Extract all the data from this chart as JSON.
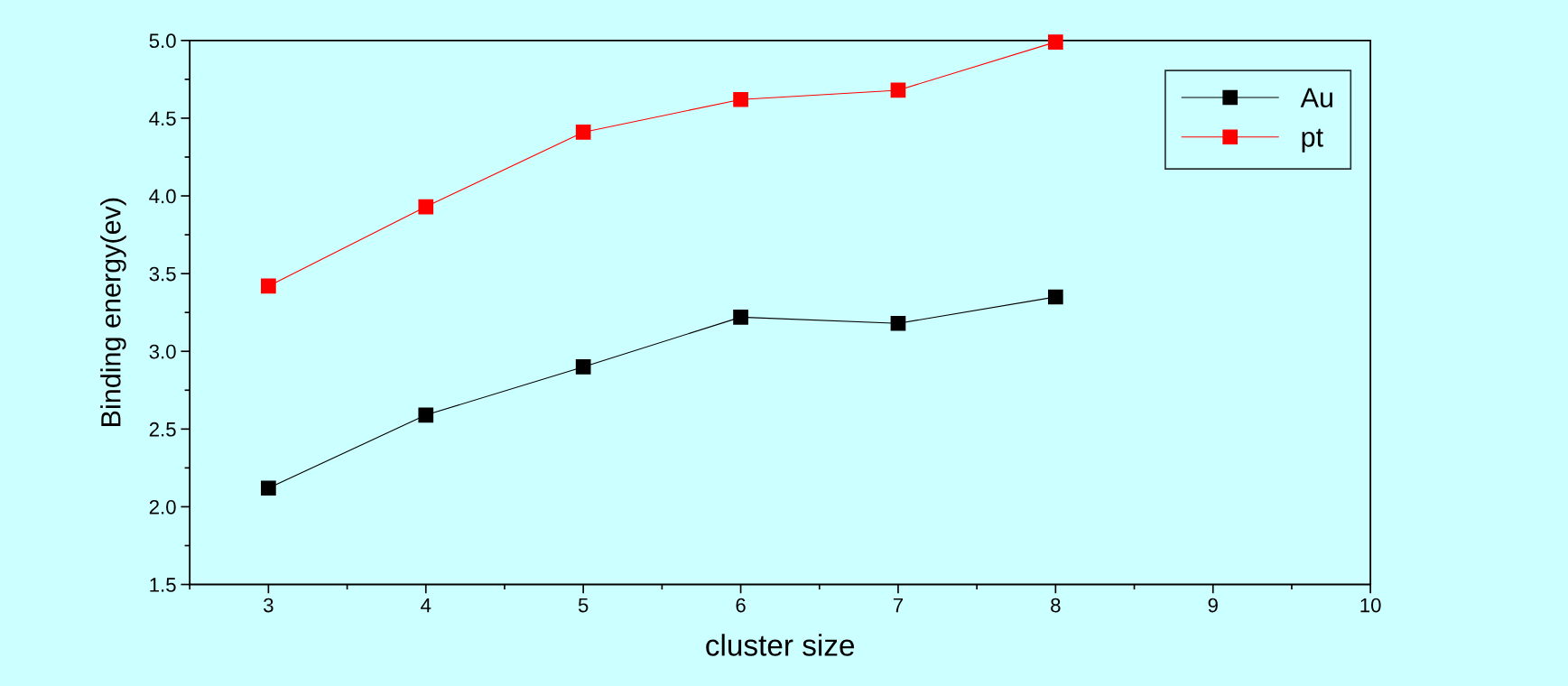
{
  "chart_data": {
    "type": "line",
    "xlabel": "cluster size",
    "ylabel": "Binding energy(ev)",
    "x": [
      3,
      4,
      5,
      6,
      7,
      8
    ],
    "series": [
      {
        "name": "Au",
        "color": "#000000",
        "values": [
          2.12,
          2.59,
          2.9,
          3.22,
          3.18,
          3.35
        ]
      },
      {
        "name": "pt",
        "color": "#ff0000",
        "values": [
          3.42,
          3.93,
          4.41,
          4.62,
          4.68,
          4.99
        ]
      }
    ],
    "xlim": [
      2.5,
      10
    ],
    "xticks": [
      3,
      4,
      5,
      6,
      7,
      8,
      9,
      10
    ],
    "ylim": [
      1.5,
      5.0
    ],
    "yticks": [
      {
        "value": 1.5,
        "label": "1.5"
      },
      {
        "value": 2.0,
        "label": "2.0"
      },
      {
        "value": 2.5,
        "label": "2.5"
      },
      {
        "value": 3.0,
        "label": "3.0"
      },
      {
        "value": 3.5,
        "label": "3.5"
      },
      {
        "value": 4.0,
        "label": "4.0"
      },
      {
        "value": 4.5,
        "label": "4.5"
      },
      {
        "value": 5.0,
        "label": "5.0"
      }
    ],
    "marker": "square",
    "line_style": "solid",
    "legend": "top right",
    "grid": false
  }
}
